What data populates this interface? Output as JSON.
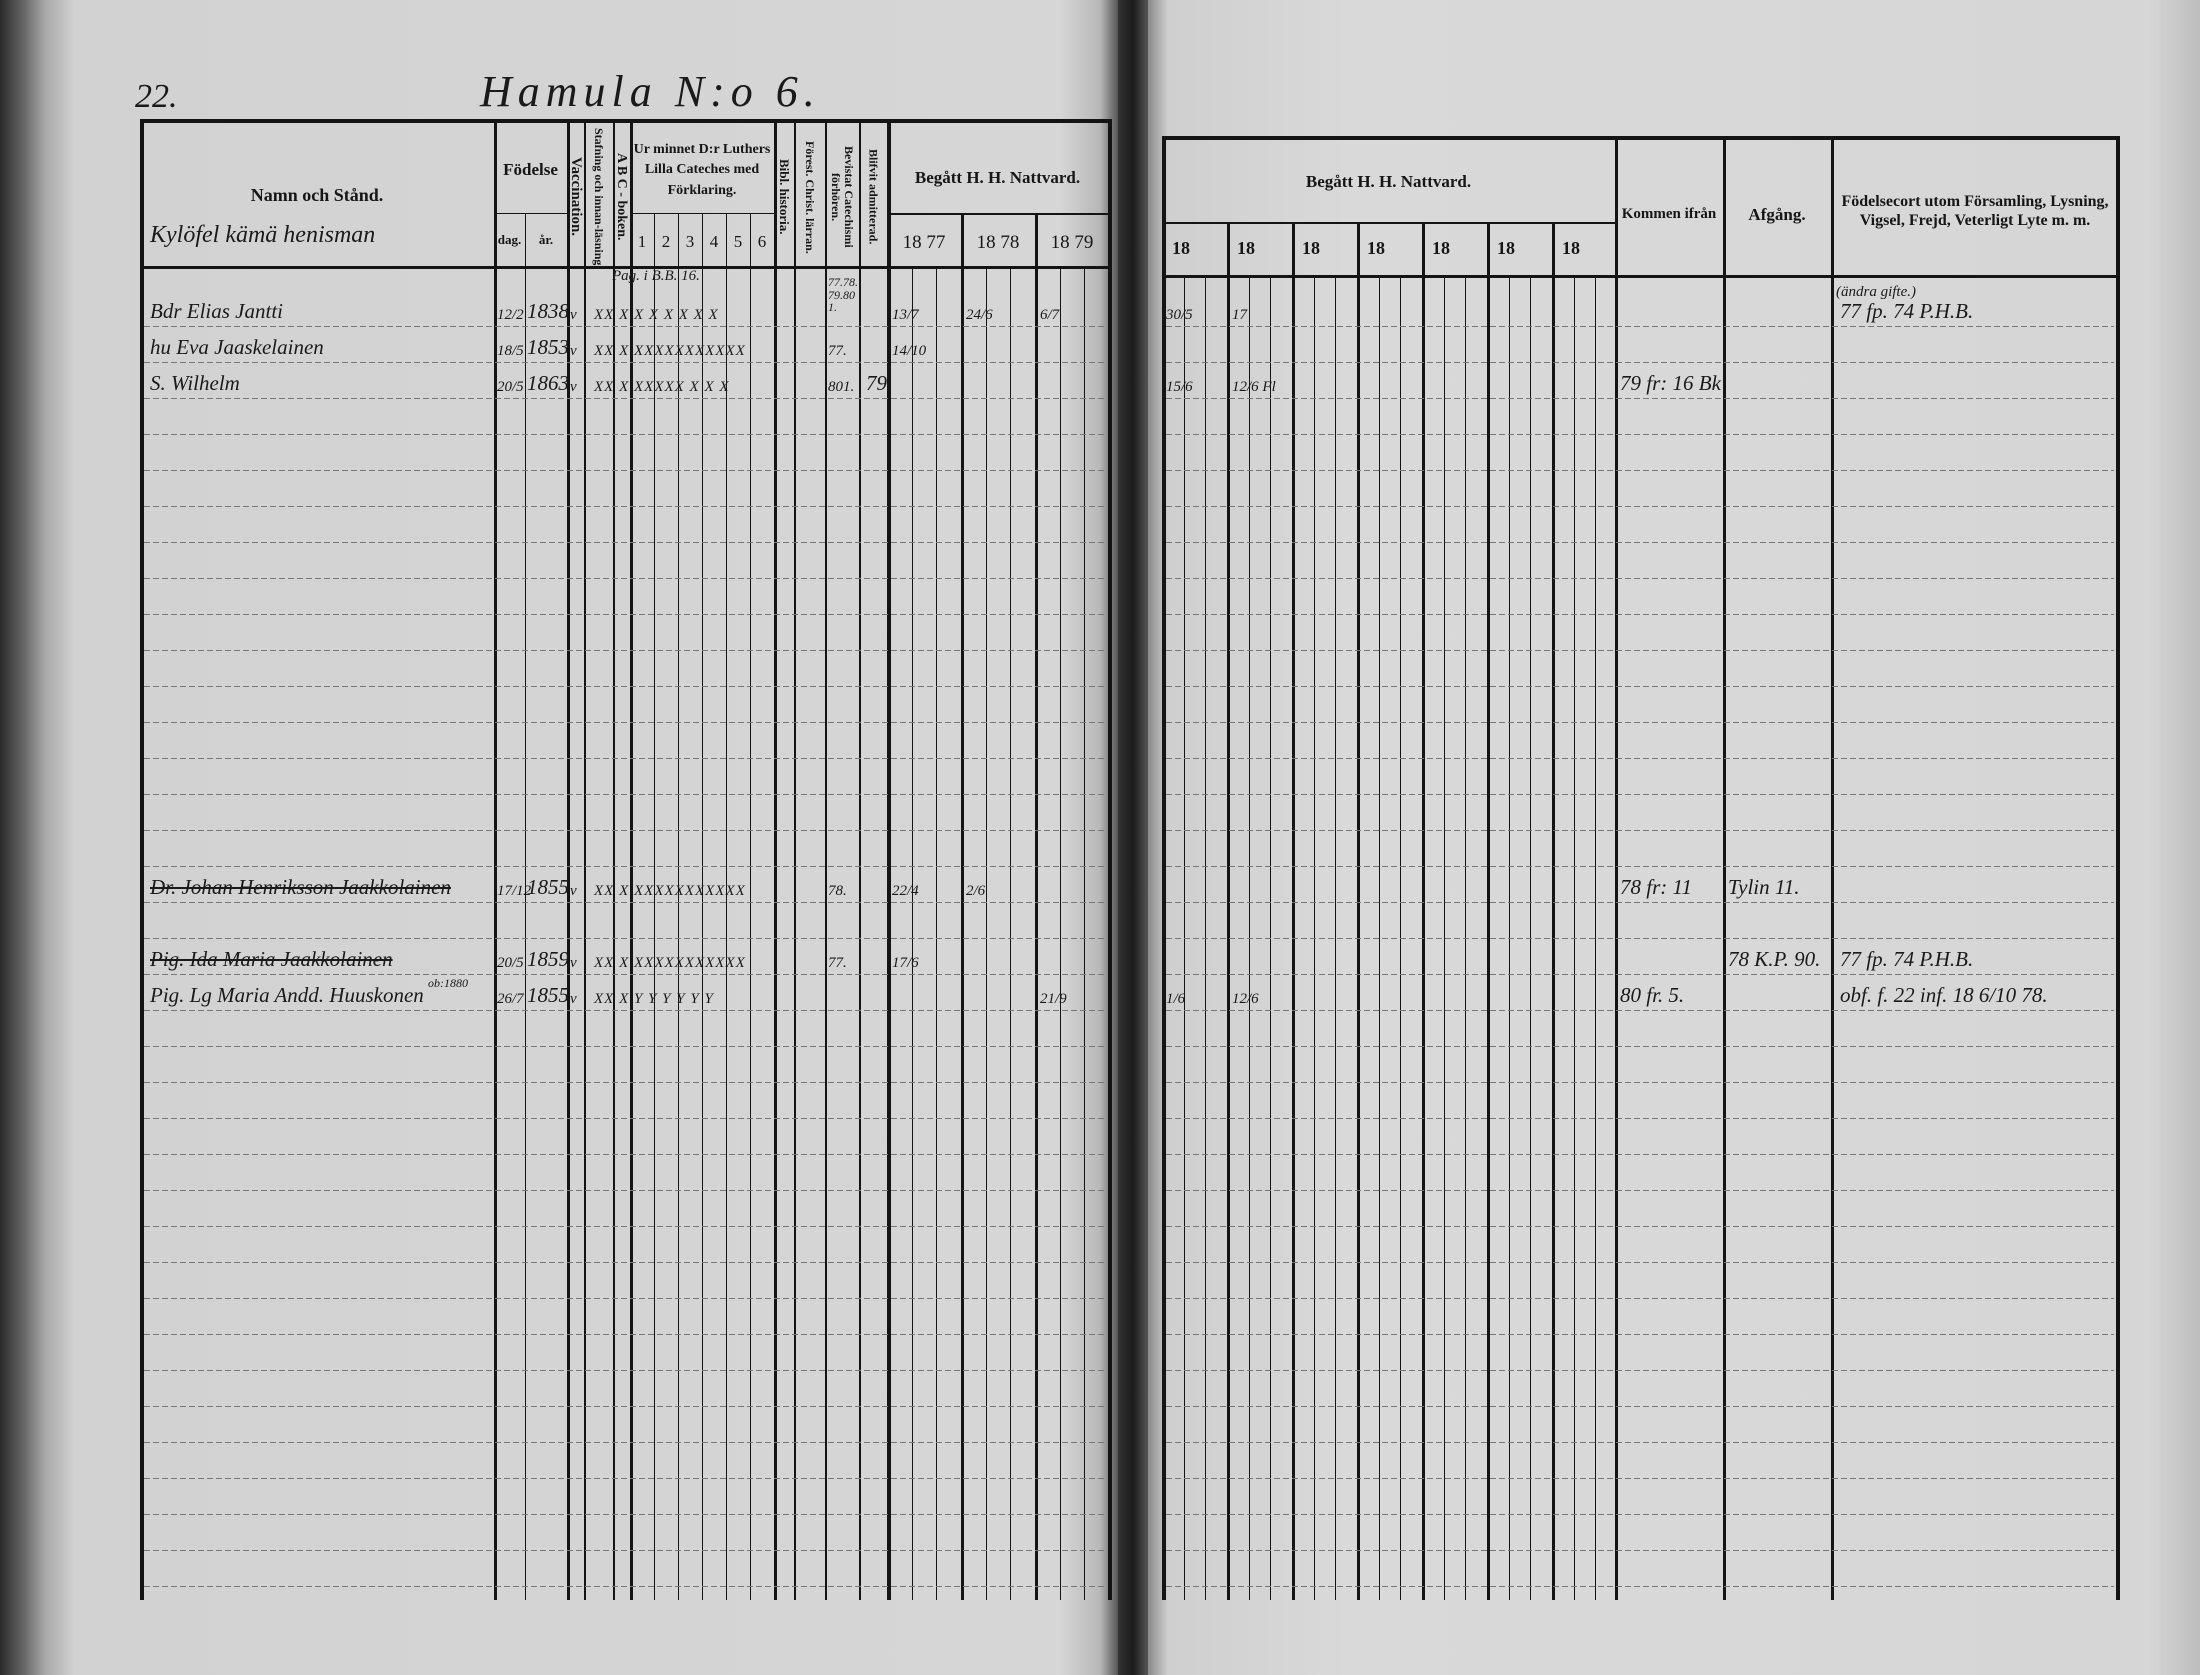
{
  "page_number": "22.",
  "village_title": "Hamula N:o 6.",
  "farm_name": "Kylöfel kämä henisman",
  "left_headers": {
    "name": "Namn och Stånd.",
    "birth": "Födelse",
    "birth_day": "dag.",
    "birth_year": "år.",
    "vaccination": "Vaccination.",
    "spelling": "Stafning och innan-läsning",
    "abc": "A B C - boken.",
    "catechism": "Ur minnet D:r Luthers Lilla Cateches med Förklaring.",
    "catechism_parts": [
      "1",
      "2",
      "3",
      "4",
      "5",
      "6"
    ],
    "bible_history": "Bibl. historia.",
    "christ_teaching": "Förest. Christ. lärran.",
    "catechism_exams": "Bevistat Catechismi förhören.",
    "admitted": "Blifvit admitterad.",
    "communion": "Begått H. H. Nattvard.",
    "communion_years": [
      "18 77",
      "18 78",
      "18 79"
    ]
  },
  "right_headers": {
    "communion": "Begått H. H. Nattvard.",
    "communion_years": [
      "18",
      "18",
      "18",
      "18",
      "18",
      "18",
      "18"
    ],
    "came_from": "Kommen ifrån",
    "departure": "Afgång.",
    "certificates": "Födelsecort utom Församling, Lysning, Vigsel, Frejd, Veterligt Lyte m. m."
  },
  "annotations": {
    "catechism_page_note": "Pag. i B.B. 16.",
    "exam_years_note": "77.78.\n79.80\n1.",
    "remarried_note": "(ändra gifte.)",
    "death_note": "ob:1880"
  },
  "entries": [
    {
      "name": "Bdr Elias Jantti",
      "day": "12/2",
      "year": "1838",
      "vacc": "v",
      "marks": "XX X X X X X X X",
      "exams": "",
      "admitted": "",
      "c77": "13/7",
      "c78": "24/6",
      "c79": "6/7",
      "r1": "30/5",
      "r2": "17",
      "came_from": "",
      "departure": "",
      "certificates": "77 fp. 74 P.H.B.",
      "struck": false
    },
    {
      "name": "hu Eva Jaaskelainen",
      "day": "18/5",
      "year": "1853",
      "vacc": "v",
      "marks": "XX X XXXXXXXXXXX",
      "exams": "77.",
      "admitted": "",
      "c77": "14/10",
      "c78": "",
      "c79": "",
      "r1": "",
      "r2": "",
      "came_from": "",
      "departure": "",
      "certificates": "",
      "struck": false
    },
    {
      "name": "S. Wilhelm",
      "day": "20/5",
      "year": "1863",
      "vacc": "v",
      "marks": "XX X XXXXX X X X",
      "exams": "801.",
      "admitted": "79",
      "c77": "",
      "c78": "",
      "c79": "",
      "r1": "15/6",
      "r2": "12/6 Fl",
      "came_from": "79 fr: 16 Bk",
      "departure": "",
      "certificates": "",
      "struck": false
    },
    {
      "name": "Dr. Johan Henriksson Jaakkolainen",
      "day": "17/12",
      "year": "1855",
      "vacc": "v",
      "marks": "XX X XXXXXXXXXXX",
      "exams": "78.",
      "admitted": "",
      "c77": "22/4",
      "c78": "2/6",
      "c79": "",
      "r1": "",
      "r2": "",
      "came_from": "78 fr: 11",
      "departure": "Tylin 11.",
      "certificates": "",
      "struck": true
    },
    {
      "name": "Pig. Ida Maria Jaakkolainen",
      "day": "20/5",
      "year": "1859",
      "vacc": "v",
      "marks": "XX X XXXXXXXXXXX",
      "exams": "77.",
      "admitted": "",
      "c77": "17/6",
      "c78": "",
      "c79": "",
      "r1": "",
      "r2": "",
      "came_from": "",
      "departure": "78 K.P. 90.",
      "certificates": "77 fp. 74 P.H.B.",
      "struck": true
    },
    {
      "name": "Pig. Lg Maria Andd. Huuskonen",
      "day": "26/7",
      "year": "1855",
      "vacc": "v",
      "marks": "XX X Y Y Y Y Y Y",
      "exams": "",
      "admitted": "",
      "c77": "",
      "c78": "",
      "c79": "21/9",
      "r1": "1/6",
      "r2": "12/6",
      "came_from": "80 fr. 5.",
      "departure": "",
      "certificates": "obf. f. 22 inf. 18 6/10 78.",
      "struck": false
    }
  ]
}
